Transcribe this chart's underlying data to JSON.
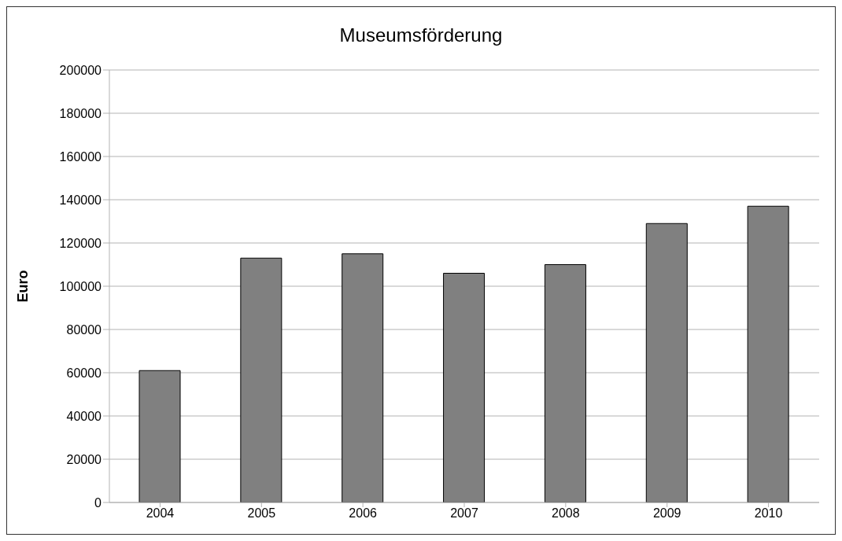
{
  "chart_data": {
    "type": "bar",
    "title": "Museumsförderung",
    "ylabel": "Euro",
    "categories": [
      "2004",
      "2005",
      "2006",
      "2007",
      "2008",
      "2009",
      "2010"
    ],
    "values": [
      61000,
      113000,
      115000,
      106000,
      110000,
      129000,
      137000
    ],
    "color": "#808080",
    "ylim": [
      0,
      200000
    ],
    "yticks": [
      0,
      20000,
      40000,
      60000,
      80000,
      100000,
      120000,
      140000,
      160000,
      180000,
      200000
    ],
    "grid": "y",
    "legend": false
  }
}
